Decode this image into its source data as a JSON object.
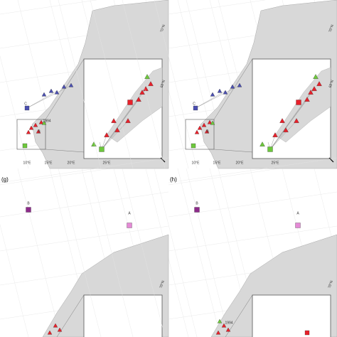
{
  "panels": [
    {
      "site_labels": [
        "C",
        "B",
        "1994"
      ],
      "lon_labels": [
        "10°E",
        "15°E",
        "20°E",
        "25°E"
      ],
      "lat_labels": [
        "70°N",
        "68°N"
      ]
    },
    {
      "site_labels": [
        "C",
        "B"
      ],
      "lon_labels": [
        "10°E",
        "15°E",
        "20°E",
        "25°E"
      ],
      "lat_labels": [
        "70°N",
        "68°N"
      ]
    },
    {
      "label": "(g)",
      "site_labels": [
        "B",
        "A"
      ],
      "lat_labels": [
        "70°N"
      ]
    },
    {
      "label": "(h)",
      "site_labels": [
        "B",
        "A",
        "1994"
      ],
      "lat_labels": [
        "70°N"
      ]
    }
  ]
}
